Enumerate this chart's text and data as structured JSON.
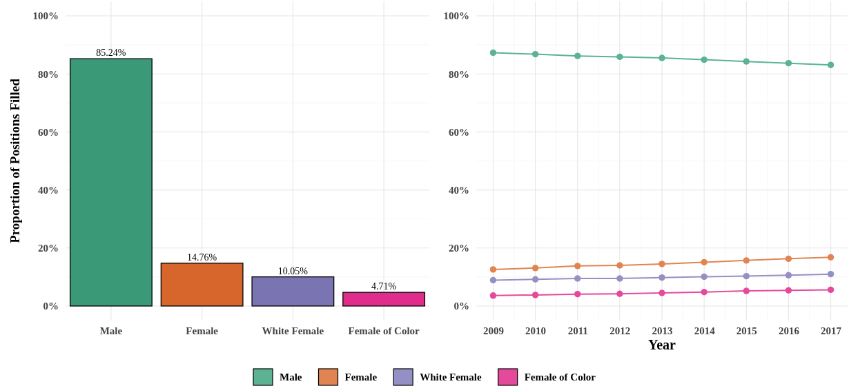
{
  "chart_data": [
    {
      "type": "bar",
      "ylabel": "Proportion of Positions Filled",
      "categories": [
        "Male",
        "Female",
        "White Female",
        "Female of Color"
      ],
      "values": [
        85.24,
        14.76,
        10.05,
        4.71
      ],
      "colors": [
        "#3a9a78",
        "#d6662b",
        "#7b74b3",
        "#e02d8b"
      ],
      "value_labels": [
        "85.24%",
        "14.76%",
        "10.05%",
        "4.71%"
      ],
      "ylim": [
        -5,
        105
      ],
      "yticks": [
        {
          "value": 0,
          "label": "0%"
        },
        {
          "value": 20,
          "label": "20%"
        },
        {
          "value": 40,
          "label": "40%"
        },
        {
          "value": 60,
          "label": "60%"
        },
        {
          "value": 80,
          "label": "80%"
        },
        {
          "value": 100,
          "label": "100%"
        }
      ],
      "grid": true
    },
    {
      "type": "line",
      "xlabel": "Year",
      "x": [
        2009,
        2010,
        2011,
        2012,
        2013,
        2014,
        2015,
        2016,
        2017
      ],
      "series": [
        {
          "name": "Male",
          "color": "#5bb393",
          "values": [
            87.3,
            86.8,
            86.2,
            85.9,
            85.5,
            84.9,
            84.3,
            83.7,
            83.1
          ]
        },
        {
          "name": "Female",
          "color": "#e08552",
          "values": [
            12.6,
            13.1,
            13.8,
            14.0,
            14.5,
            15.1,
            15.7,
            16.3,
            16.8
          ]
        },
        {
          "name": "White Female",
          "color": "#9590c4",
          "values": [
            8.9,
            9.2,
            9.5,
            9.5,
            9.8,
            10.1,
            10.3,
            10.6,
            11.0
          ]
        },
        {
          "name": "Female of Color",
          "color": "#e5499b",
          "values": [
            3.6,
            3.8,
            4.1,
            4.2,
            4.5,
            4.8,
            5.2,
            5.4,
            5.6
          ]
        }
      ],
      "xlim": [
        2008.6,
        2017.4
      ],
      "xticks": [
        2009,
        2010,
        2011,
        2012,
        2013,
        2014,
        2015,
        2016,
        2017
      ],
      "ylim": [
        -5,
        105
      ],
      "yticks": [
        {
          "value": 0,
          "label": "0%"
        },
        {
          "value": 20,
          "label": "20%"
        },
        {
          "value": 40,
          "label": "40%"
        },
        {
          "value": 60,
          "label": "60%"
        },
        {
          "value": 80,
          "label": "80%"
        },
        {
          "value": 100,
          "label": "100%"
        }
      ],
      "grid": true,
      "marker": "circle",
      "line_style": "solid",
      "legend": "bottom"
    }
  ]
}
